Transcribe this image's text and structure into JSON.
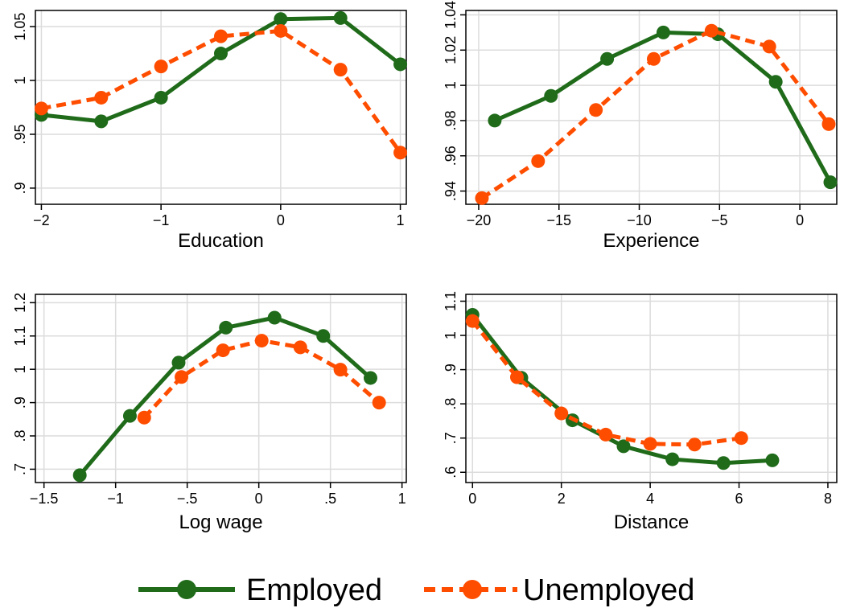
{
  "colors": {
    "employed": "#1f6b1a",
    "unemployed": "#ff4d00",
    "grid": "#dcdcdc",
    "axis": "#000000"
  },
  "legend": [
    {
      "key": "employed",
      "label": "Employed"
    },
    {
      "key": "unemployed",
      "label": "Unemployed"
    }
  ],
  "chart_data": [
    {
      "type": "line",
      "xlabel": "Education",
      "xlim": [
        -2.05,
        1.05
      ],
      "ylim": [
        0.885,
        1.065
      ],
      "xticks": [
        -2,
        -1,
        0,
        1
      ],
      "xticklabels": [
        "−2",
        "−1",
        "0",
        "1"
      ],
      "yticks": [
        0.9,
        0.95,
        1,
        1.05
      ],
      "yticklabels": [
        ".9",
        ".95",
        "1",
        "1.05"
      ],
      "grid": true,
      "series": [
        {
          "name": "Employed",
          "key": "employed",
          "x": [
            -2,
            -1.5,
            -1,
            -0.5,
            0,
            0.5,
            1
          ],
          "y": [
            0.968,
            0.962,
            0.984,
            1.025,
            1.057,
            1.058,
            1.015
          ]
        },
        {
          "name": "Unemployed",
          "key": "unemployed",
          "x": [
            -2,
            -1.5,
            -1,
            -0.5,
            0,
            0.5,
            1
          ],
          "y": [
            0.974,
            0.984,
            1.013,
            1.041,
            1.046,
            1.01,
            0.933
          ]
        }
      ]
    },
    {
      "type": "line",
      "xlabel": "Experience",
      "xlim": [
        -20.8,
        2.3
      ],
      "ylim": [
        0.9325,
        1.0425
      ],
      "xticks": [
        -20,
        -15,
        -10,
        -5,
        0
      ],
      "xticklabels": [
        "−20",
        "−15",
        "−10",
        "−5",
        "0"
      ],
      "yticks": [
        0.94,
        0.96,
        0.98,
        1,
        1.02,
        1.04
      ],
      "yticklabels": [
        ".94",
        ".96",
        ".98",
        "1",
        "1.02",
        "1.04"
      ],
      "grid": true,
      "series": [
        {
          "name": "Employed",
          "key": "employed",
          "x": [
            -19,
            -15.5,
            -12,
            -8.5,
            -5.1,
            -1.5,
            1.9
          ],
          "y": [
            0.98,
            0.994,
            1.015,
            1.03,
            1.029,
            1.002,
            0.945
          ]
        },
        {
          "name": "Unemployed",
          "key": "unemployed",
          "x": [
            -19.8,
            -16.3,
            -12.7,
            -9.1,
            -5.5,
            -1.9,
            1.8
          ],
          "y": [
            0.936,
            0.957,
            0.986,
            1.015,
            1.031,
            1.022,
            0.978
          ]
        }
      ]
    },
    {
      "type": "line",
      "xlabel": "Log wage",
      "xlim": [
        -1.56,
        1.03
      ],
      "ylim": [
        0.66,
        1.225
      ],
      "xticks": [
        -1.5,
        -1,
        -0.5,
        0,
        0.5,
        1
      ],
      "xticklabels": [
        "−1.5",
        "−1",
        "−.5",
        "0",
        ".5",
        "1"
      ],
      "yticks": [
        0.7,
        0.8,
        0.9,
        1,
        1.1,
        1.2
      ],
      "yticklabels": [
        ".7",
        ".8",
        ".9",
        "1",
        "1.1",
        "1.2"
      ],
      "grid": true,
      "series": [
        {
          "name": "Employed",
          "key": "employed",
          "x": [
            -1.25,
            -0.9,
            -0.56,
            -0.23,
            0.11,
            0.45,
            0.78
          ],
          "y": [
            0.682,
            0.86,
            1.02,
            1.125,
            1.155,
            1.1,
            0.974
          ]
        },
        {
          "name": "Unemployed",
          "key": "unemployed",
          "x": [
            -0.8,
            -0.54,
            -0.25,
            0.02,
            0.29,
            0.57,
            0.84
          ],
          "y": [
            0.855,
            0.977,
            1.057,
            1.086,
            1.066,
            0.999,
            0.9
          ]
        }
      ]
    },
    {
      "type": "line",
      "xlabel": "Distance",
      "xlim": [
        -0.15,
        8.2
      ],
      "ylim": [
        0.57,
        1.12
      ],
      "xticks": [
        0,
        2,
        4,
        6,
        8
      ],
      "xticklabels": [
        "0",
        "2",
        "4",
        "6",
        "8"
      ],
      "yticks": [
        0.6,
        0.7,
        0.8,
        0.9,
        1,
        1.1
      ],
      "yticklabels": [
        ".6",
        ".7",
        ".8",
        ".9",
        "1",
        "1.1"
      ],
      "grid": true,
      "series": [
        {
          "name": "Employed",
          "key": "employed",
          "x": [
            0,
            1.1,
            2.25,
            3.4,
            4.5,
            5.65,
            6.75
          ],
          "y": [
            1.06,
            0.876,
            0.752,
            0.676,
            0.638,
            0.627,
            0.635
          ]
        },
        {
          "name": "Unemployed",
          "key": "unemployed",
          "x": [
            0,
            1,
            2,
            3,
            4,
            5,
            6.05
          ],
          "y": [
            1.042,
            0.878,
            0.772,
            0.71,
            0.683,
            0.681,
            0.7
          ]
        }
      ]
    }
  ]
}
